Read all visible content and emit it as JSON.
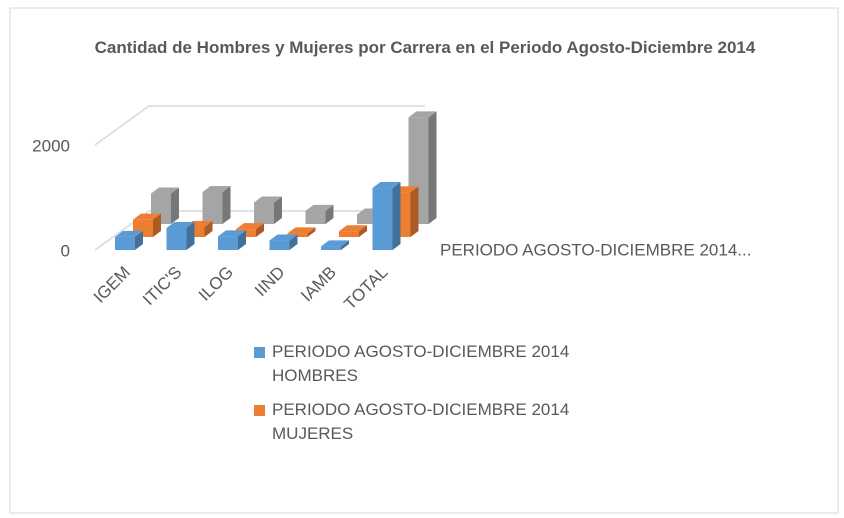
{
  "chart_data": {
    "type": "bar3d",
    "title": "Cantidad de Hombres y Mujeres por Carrera en el Periodo Agosto-Diciembre 2014",
    "categories": [
      "IGEM",
      "ITIC'S",
      "ILOG",
      "IIND",
      "IAMB",
      "TOTAL"
    ],
    "series": [
      {
        "name": "PERIODO AGOSTO-DICIEMBRE 2014 HOMBRES",
        "color": "#5b9bd5",
        "values": [
          250,
          420,
          260,
          180,
          70,
          1180
        ]
      },
      {
        "name": "PERIODO AGOSTO-DICIEMBRE 2014 MUJERES",
        "color": "#ed7d31",
        "values": [
          330,
          190,
          150,
          70,
          110,
          850
        ]
      },
      {
        "name": "PERIODO AGOSTO-DICIEMBRE 2014...",
        "color": "#a5a5a5",
        "values": [
          580,
          610,
          410,
          250,
          180,
          2030
        ]
      }
    ],
    "legend_series": [
      0,
      1
    ],
    "ylim": [
      0,
      2000
    ],
    "yticks": [
      0,
      2000
    ],
    "grid": true
  }
}
